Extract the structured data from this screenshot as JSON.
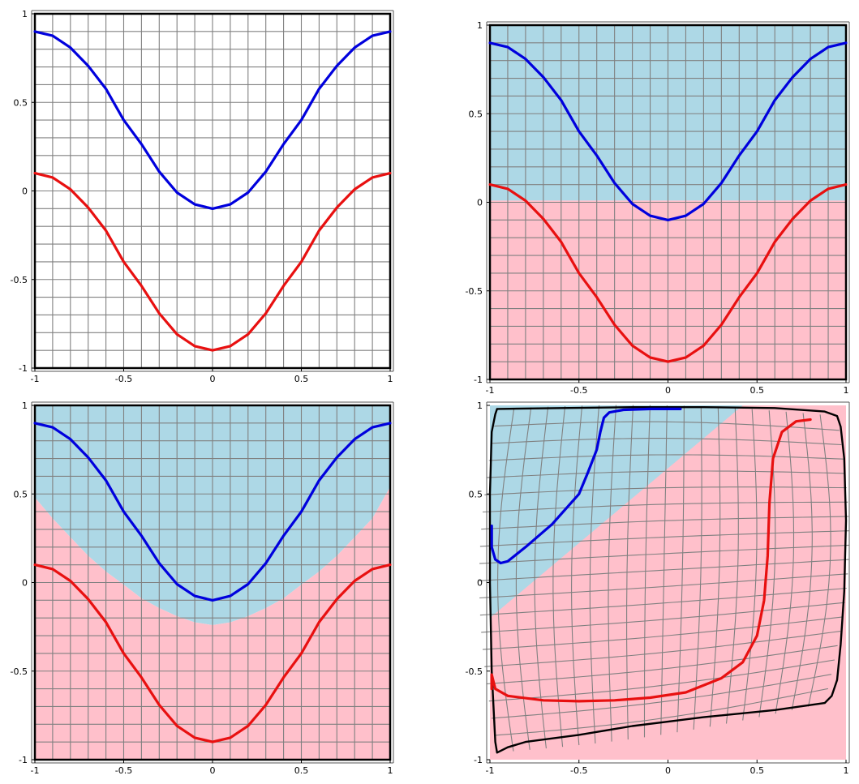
{
  "chart_data": [
    {
      "type": "line",
      "panel": "top-left",
      "xlim": [
        -1,
        1
      ],
      "ylim": [
        -1,
        1
      ],
      "xticks": [
        -1,
        -0.5,
        0,
        0.5,
        1
      ],
      "yticks": [
        -1,
        -0.5,
        0,
        0.5,
        1
      ],
      "xtick_labels": [
        "-1",
        "-0.5",
        "0",
        "0.5",
        "1"
      ],
      "ytick_labels": [
        "-1",
        "-0.5",
        "0",
        "0.5",
        "1"
      ],
      "grid": true,
      "grid_cells": 20,
      "frame": true,
      "regions": [],
      "series": [
        {
          "color": "#0000dd",
          "x": [
            -1,
            -0.9,
            -0.8,
            -0.7,
            -0.6,
            -0.5,
            -0.4,
            -0.3,
            -0.2,
            -0.1,
            0,
            0.1,
            0.2,
            0.3,
            0.4,
            0.5,
            0.6,
            0.7,
            0.8,
            0.9,
            1
          ],
          "y": [
            0.9,
            0.876,
            0.809,
            0.706,
            0.576,
            0.4,
            0.264,
            0.109,
            -0.009,
            -0.076,
            -0.1,
            -0.076,
            -0.009,
            0.109,
            0.264,
            0.4,
            0.576,
            0.706,
            0.809,
            0.876,
            0.9
          ]
        },
        {
          "color": "#e81010",
          "x": [
            -1,
            -0.9,
            -0.8,
            -0.7,
            -0.6,
            -0.5,
            -0.4,
            -0.3,
            -0.2,
            -0.1,
            0,
            0.1,
            0.2,
            0.3,
            0.4,
            0.5,
            0.6,
            0.7,
            0.8,
            0.9,
            1
          ],
          "y": [
            0.1,
            0.076,
            0.009,
            -0.094,
            -0.224,
            -0.4,
            -0.536,
            -0.691,
            -0.809,
            -0.876,
            -0.9,
            -0.876,
            -0.809,
            -0.691,
            -0.536,
            -0.4,
            -0.224,
            -0.094,
            0.009,
            0.076,
            0.1
          ]
        }
      ]
    },
    {
      "type": "line",
      "panel": "top-right",
      "xlim": [
        -1,
        1
      ],
      "ylim": [
        -1,
        1
      ],
      "xticks": [
        -1,
        -0.5,
        0,
        0.5,
        1
      ],
      "yticks": [
        -1,
        -0.5,
        0,
        0.5,
        1
      ],
      "xtick_labels": [
        "-1",
        "-0.5",
        "0",
        "0.5",
        "1"
      ],
      "ytick_labels": [
        "-1",
        "-0.5",
        "0",
        "0.5",
        "1"
      ],
      "grid": true,
      "grid_cells": 20,
      "frame": true,
      "regions": [
        {
          "color": "#add8e6",
          "x": [
            -1,
            1,
            1,
            -1
          ],
          "y": [
            1,
            1,
            0.01,
            0.01
          ]
        },
        {
          "color": "#ffc0cb",
          "x": [
            -1,
            1,
            1,
            -1
          ],
          "y": [
            0.01,
            0.01,
            -1,
            -1
          ]
        }
      ],
      "series": [
        {
          "color": "#0000dd",
          "x": [
            -1,
            -0.9,
            -0.8,
            -0.7,
            -0.6,
            -0.5,
            -0.4,
            -0.3,
            -0.2,
            -0.1,
            0,
            0.1,
            0.2,
            0.3,
            0.4,
            0.5,
            0.6,
            0.7,
            0.8,
            0.9,
            1
          ],
          "y": [
            0.9,
            0.876,
            0.809,
            0.706,
            0.576,
            0.4,
            0.264,
            0.109,
            -0.009,
            -0.076,
            -0.1,
            -0.076,
            -0.009,
            0.109,
            0.264,
            0.4,
            0.576,
            0.706,
            0.809,
            0.876,
            0.9
          ]
        },
        {
          "color": "#e81010",
          "x": [
            -1,
            -0.9,
            -0.8,
            -0.7,
            -0.6,
            -0.5,
            -0.4,
            -0.3,
            -0.2,
            -0.1,
            0,
            0.1,
            0.2,
            0.3,
            0.4,
            0.5,
            0.6,
            0.7,
            0.8,
            0.9,
            1
          ],
          "y": [
            0.1,
            0.076,
            0.009,
            -0.094,
            -0.224,
            -0.4,
            -0.536,
            -0.691,
            -0.809,
            -0.876,
            -0.9,
            -0.876,
            -0.809,
            -0.691,
            -0.536,
            -0.4,
            -0.224,
            -0.094,
            0.009,
            0.076,
            0.1
          ]
        }
      ]
    },
    {
      "type": "line",
      "panel": "bottom-left",
      "xlim": [
        -1,
        1
      ],
      "ylim": [
        -1,
        1
      ],
      "xticks": [
        -1,
        -0.5,
        0,
        0.5,
        1
      ],
      "yticks": [
        -1,
        -0.5,
        0,
        0.5,
        1
      ],
      "xtick_labels": [
        "-1",
        "-0.5",
        "0",
        "0.5",
        "1"
      ],
      "ytick_labels": [
        "-1",
        "-0.5",
        "0",
        "0.5",
        "1"
      ],
      "grid": true,
      "grid_cells": 20,
      "frame": true,
      "regions": [
        {
          "color": "#add8e6",
          "x": [
            -1,
            -0.9,
            -0.8,
            -0.7,
            -0.6,
            -0.5,
            -0.4,
            -0.3,
            -0.2,
            -0.1,
            0,
            0.1,
            0.2,
            0.3,
            0.4,
            0.5,
            0.6,
            0.7,
            0.8,
            0.9,
            1,
            1,
            -1
          ],
          "y": [
            0.48,
            0.362,
            0.256,
            0.151,
            0.062,
            -0.012,
            -0.089,
            -0.144,
            -0.19,
            -0.225,
            -0.24,
            -0.225,
            -0.19,
            -0.144,
            -0.089,
            -0.012,
            0.062,
            0.151,
            0.256,
            0.362,
            0.54,
            1,
            1
          ]
        },
        {
          "color": "#ffc0cb",
          "x": [
            -1,
            -0.9,
            -0.8,
            -0.7,
            -0.6,
            -0.5,
            -0.4,
            -0.3,
            -0.2,
            -0.1,
            0,
            0.1,
            0.2,
            0.3,
            0.4,
            0.5,
            0.6,
            0.7,
            0.8,
            0.9,
            1,
            1,
            -1
          ],
          "y": [
            0.48,
            0.362,
            0.256,
            0.151,
            0.062,
            -0.012,
            -0.089,
            -0.144,
            -0.19,
            -0.225,
            -0.24,
            -0.225,
            -0.19,
            -0.144,
            -0.089,
            -0.012,
            0.062,
            0.151,
            0.256,
            0.362,
            0.54,
            -1,
            -1
          ]
        }
      ],
      "series": [
        {
          "color": "#0000dd",
          "x": [
            -1,
            -0.9,
            -0.8,
            -0.7,
            -0.6,
            -0.5,
            -0.4,
            -0.3,
            -0.2,
            -0.1,
            0,
            0.1,
            0.2,
            0.3,
            0.4,
            0.5,
            0.6,
            0.7,
            0.8,
            0.9,
            1
          ],
          "y": [
            0.9,
            0.876,
            0.809,
            0.706,
            0.576,
            0.4,
            0.264,
            0.109,
            -0.009,
            -0.076,
            -0.1,
            -0.076,
            -0.009,
            0.109,
            0.264,
            0.4,
            0.576,
            0.706,
            0.809,
            0.876,
            0.9
          ]
        },
        {
          "color": "#e81010",
          "x": [
            -1,
            -0.9,
            -0.8,
            -0.7,
            -0.6,
            -0.5,
            -0.4,
            -0.3,
            -0.2,
            -0.1,
            0,
            0.1,
            0.2,
            0.3,
            0.4,
            0.5,
            0.6,
            0.7,
            0.8,
            0.9,
            1
          ],
          "y": [
            0.1,
            0.076,
            0.009,
            -0.094,
            -0.224,
            -0.4,
            -0.536,
            -0.691,
            -0.809,
            -0.876,
            -0.9,
            -0.876,
            -0.809,
            -0.691,
            -0.536,
            -0.4,
            -0.224,
            -0.094,
            0.009,
            0.076,
            0.1
          ]
        }
      ]
    },
    {
      "type": "line",
      "panel": "bottom-right",
      "xlim": [
        -1,
        1
      ],
      "ylim": [
        -1,
        1
      ],
      "xticks": [
        -1,
        -0.5,
        0,
        0.5,
        1
      ],
      "yticks": [
        -1,
        -0.5,
        0,
        0.5,
        1
      ],
      "xtick_labels": [
        "-1",
        "-0.5",
        "0",
        "0.5",
        "1"
      ],
      "ytick_labels": [
        "-1",
        "-0.5",
        "0",
        "0.5",
        "1"
      ],
      "grid": false,
      "frame": false,
      "warped_grid_lines": 20,
      "boundary_corners": {
        "top_left": [
          -0.96,
          0.98
        ],
        "top_right": [
          0.95,
          0.94
        ],
        "bottom_right": [
          0.88,
          -0.68
        ],
        "bottom_left": [
          -0.96,
          -0.96
        ]
      },
      "regions": [
        {
          "color": "#ffc0cb",
          "x": [
            -1,
            1,
            1,
            -1
          ],
          "y": [
            1,
            1,
            -1,
            -1
          ]
        },
        {
          "color": "#add8e6",
          "x": [
            -1,
            0.42,
            -1
          ],
          "y": [
            1,
            1,
            -0.2
          ]
        }
      ],
      "series": [
        {
          "color": "#000000",
          "x": [
            -0.96,
            -0.6,
            -0.2,
            0.2,
            0.6,
            0.88,
            0.95,
            0.97,
            0.99,
            1.0,
            0.99,
            0.97,
            0.95,
            0.92,
            0.88,
            0.6,
            0.2,
            -0.2,
            -0.5,
            -0.8,
            -0.9,
            -0.96,
            -0.97,
            -0.99,
            -1.0,
            -1.0,
            -0.99,
            -0.97,
            -0.96
          ],
          "y": [
            0.98,
            0.985,
            0.99,
            0.99,
            0.985,
            0.965,
            0.94,
            0.88,
            0.7,
            0.35,
            -0.05,
            -0.35,
            -0.55,
            -0.64,
            -0.68,
            -0.72,
            -0.76,
            -0.81,
            -0.86,
            -0.9,
            -0.93,
            -0.96,
            -0.9,
            -0.5,
            0.0,
            0.5,
            0.85,
            0.95,
            0.98
          ]
        },
        {
          "color": "#0000dd",
          "x": [
            -0.99,
            -0.99,
            -0.97,
            -0.94,
            -0.9,
            -0.8,
            -0.65,
            -0.5,
            -0.45,
            -0.4,
            -0.38,
            -0.36,
            -0.33,
            -0.25,
            -0.1,
            0.07
          ],
          "y": [
            0.32,
            0.2,
            0.13,
            0.11,
            0.12,
            0.2,
            0.33,
            0.5,
            0.62,
            0.75,
            0.85,
            0.93,
            0.96,
            0.975,
            0.98,
            0.98
          ]
        },
        {
          "color": "#e81010",
          "x": [
            -0.99,
            -0.99,
            -0.97,
            -0.9,
            -0.7,
            -0.5,
            -0.3,
            -0.1,
            0.1,
            0.3,
            0.42,
            0.5,
            0.54,
            0.56,
            0.57,
            0.59,
            0.64,
            0.72,
            0.8
          ],
          "y": [
            -0.6,
            -0.52,
            -0.6,
            -0.64,
            -0.665,
            -0.67,
            -0.665,
            -0.65,
            -0.62,
            -0.54,
            -0.45,
            -0.3,
            -0.1,
            0.15,
            0.45,
            0.7,
            0.85,
            0.91,
            0.92
          ]
        }
      ]
    }
  ]
}
